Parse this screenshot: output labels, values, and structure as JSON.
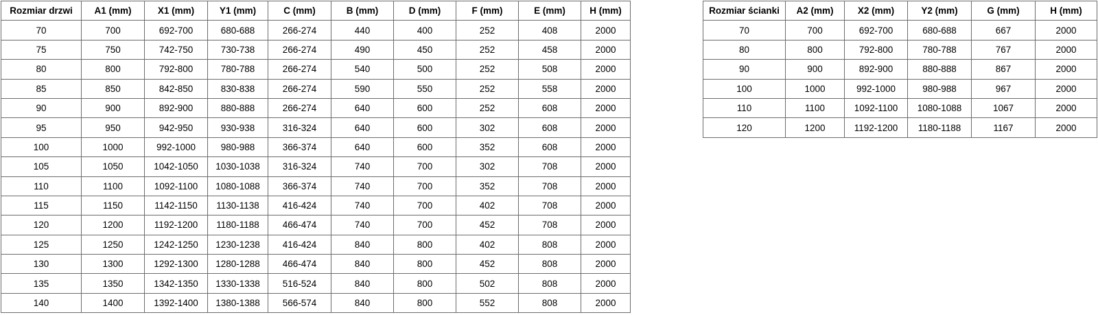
{
  "door_table": {
    "headers": [
      "Rozmiar drzwi",
      "A1 (mm)",
      "X1 (mm)",
      "Y1 (mm)",
      "C (mm)",
      "B (mm)",
      "D (mm)",
      "F (mm)",
      "E (mm)",
      "H (mm)"
    ],
    "rows": [
      [
        "70",
        "700",
        "692-700",
        "680-688",
        "266-274",
        "440",
        "400",
        "252",
        "408",
        "2000"
      ],
      [
        "75",
        "750",
        "742-750",
        "730-738",
        "266-274",
        "490",
        "450",
        "252",
        "458",
        "2000"
      ],
      [
        "80",
        "800",
        "792-800",
        "780-788",
        "266-274",
        "540",
        "500",
        "252",
        "508",
        "2000"
      ],
      [
        "85",
        "850",
        "842-850",
        "830-838",
        "266-274",
        "590",
        "550",
        "252",
        "558",
        "2000"
      ],
      [
        "90",
        "900",
        "892-900",
        "880-888",
        "266-274",
        "640",
        "600",
        "252",
        "608",
        "2000"
      ],
      [
        "95",
        "950",
        "942-950",
        "930-938",
        "316-324",
        "640",
        "600",
        "302",
        "608",
        "2000"
      ],
      [
        "100",
        "1000",
        "992-1000",
        "980-988",
        "366-374",
        "640",
        "600",
        "352",
        "608",
        "2000"
      ],
      [
        "105",
        "1050",
        "1042-1050",
        "1030-1038",
        "316-324",
        "740",
        "700",
        "302",
        "708",
        "2000"
      ],
      [
        "110",
        "1100",
        "1092-1100",
        "1080-1088",
        "366-374",
        "740",
        "700",
        "352",
        "708",
        "2000"
      ],
      [
        "115",
        "1150",
        "1142-1150",
        "1130-1138",
        "416-424",
        "740",
        "700",
        "402",
        "708",
        "2000"
      ],
      [
        "120",
        "1200",
        "1192-1200",
        "1180-1188",
        "466-474",
        "740",
        "700",
        "452",
        "708",
        "2000"
      ],
      [
        "125",
        "1250",
        "1242-1250",
        "1230-1238",
        "416-424",
        "840",
        "800",
        "402",
        "808",
        "2000"
      ],
      [
        "130",
        "1300",
        "1292-1300",
        "1280-1288",
        "466-474",
        "840",
        "800",
        "452",
        "808",
        "2000"
      ],
      [
        "135",
        "1350",
        "1342-1350",
        "1330-1338",
        "516-524",
        "840",
        "800",
        "502",
        "808",
        "2000"
      ],
      [
        "140",
        "1400",
        "1392-1400",
        "1380-1388",
        "566-574",
        "840",
        "800",
        "552",
        "808",
        "2000"
      ]
    ]
  },
  "wall_table": {
    "headers": [
      "Rozmiar ścianki",
      "A2 (mm)",
      "X2 (mm)",
      "Y2 (mm)",
      "G (mm)",
      "H (mm)"
    ],
    "rows": [
      [
        "70",
        "700",
        "692-700",
        "680-688",
        "667",
        "2000"
      ],
      [
        "80",
        "800",
        "792-800",
        "780-788",
        "767",
        "2000"
      ],
      [
        "90",
        "900",
        "892-900",
        "880-888",
        "867",
        "2000"
      ],
      [
        "100",
        "1000",
        "992-1000",
        "980-988",
        "967",
        "2000"
      ],
      [
        "110",
        "1100",
        "1092-1100",
        "1080-1088",
        "1067",
        "2000"
      ],
      [
        "120",
        "1200",
        "1192-1200",
        "1180-1188",
        "1167",
        "2000"
      ]
    ]
  },
  "colors": {
    "border": "#6b6b6b",
    "text": "#000000",
    "background": "#ffffff"
  }
}
